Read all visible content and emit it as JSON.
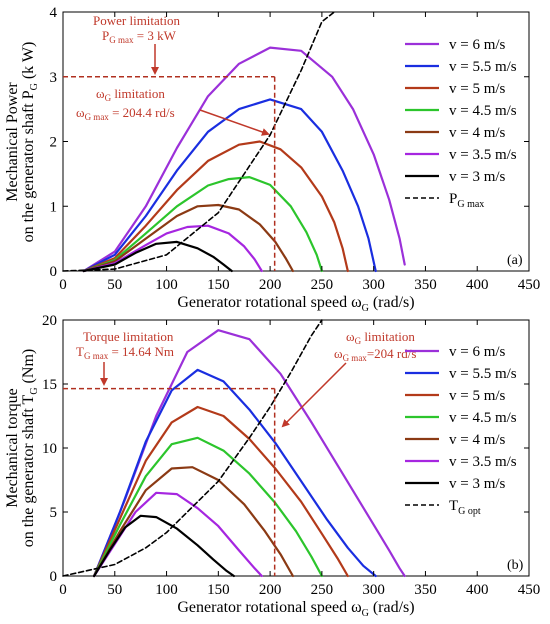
{
  "chart_data": [
    {
      "type": "line",
      "panel_label": "(a)",
      "xlabel": "Generator rotational speed ω",
      "xlabel_sub": "G",
      "xlabel_unit": " (rad/s)",
      "ylabel_line1": "Mechanical Power",
      "ylabel_line2": "on the generator shaft P",
      "ylabel_sub": "G",
      "ylabel_unit": " (k W)",
      "xlim": [
        0,
        450
      ],
      "ylim": [
        0,
        4
      ],
      "xticks": [
        0,
        50,
        100,
        150,
        200,
        250,
        300,
        350,
        400,
        450
      ],
      "yticks": [
        0,
        1,
        2,
        3,
        4
      ],
      "legend_position": "right",
      "series": [
        {
          "name": "v = 6 m/s",
          "color": "#9b30d9",
          "x": [
            20,
            50,
            80,
            110,
            140,
            170,
            200,
            230,
            260,
            280,
            300,
            315,
            325,
            330
          ],
          "y": [
            0.0,
            0.3,
            1.0,
            1.9,
            2.7,
            3.2,
            3.45,
            3.4,
            3.0,
            2.5,
            1.8,
            1.1,
            0.5,
            0.1
          ]
        },
        {
          "name": "v = 5.5 m/s",
          "color": "#1a2ee0",
          "x": [
            20,
            50,
            80,
            110,
            140,
            170,
            200,
            230,
            250,
            270,
            285,
            295,
            302
          ],
          "y": [
            0.0,
            0.25,
            0.85,
            1.55,
            2.15,
            2.5,
            2.65,
            2.5,
            2.15,
            1.55,
            1.0,
            0.5,
            0.0
          ]
        },
        {
          "name": "v = 5 m/s",
          "color": "#b33a1a",
          "x": [
            20,
            50,
            80,
            110,
            140,
            170,
            190,
            210,
            230,
            250,
            262,
            270,
            275
          ],
          "y": [
            0.0,
            0.2,
            0.7,
            1.25,
            1.7,
            1.95,
            2.0,
            1.88,
            1.6,
            1.15,
            0.75,
            0.35,
            0.0
          ]
        },
        {
          "name": "v = 4.5 m/s",
          "color": "#2cc52c",
          "x": [
            20,
            50,
            80,
            110,
            140,
            160,
            180,
            200,
            220,
            235,
            245,
            250
          ],
          "y": [
            0.0,
            0.17,
            0.58,
            1.0,
            1.32,
            1.42,
            1.45,
            1.33,
            1.0,
            0.6,
            0.25,
            0.0
          ]
        },
        {
          "name": "v = 4 m/s",
          "color": "#8b3a14",
          "x": [
            20,
            50,
            80,
            110,
            130,
            150,
            170,
            190,
            205,
            215,
            222
          ],
          "y": [
            0.0,
            0.15,
            0.5,
            0.85,
            1.0,
            1.02,
            0.95,
            0.72,
            0.45,
            0.2,
            0.0
          ]
        },
        {
          "name": "v = 3.5 m/s",
          "color": "#a626e0",
          "x": [
            20,
            50,
            80,
            100,
            120,
            140,
            160,
            175,
            185,
            192
          ],
          "y": [
            0.0,
            0.12,
            0.4,
            0.58,
            0.68,
            0.7,
            0.58,
            0.38,
            0.18,
            0.0
          ]
        },
        {
          "name": "v = 3 m/s",
          "color": "#000000",
          "x": [
            20,
            50,
            70,
            90,
            110,
            130,
            145,
            155,
            163
          ],
          "y": [
            0.0,
            0.1,
            0.28,
            0.42,
            0.45,
            0.35,
            0.22,
            0.1,
            0.0
          ]
        },
        {
          "name": "P",
          "name_sub": "G max",
          "color": "#000000",
          "dashed": true,
          "x": [
            0,
            50,
            100,
            150,
            200,
            230,
            250,
            262
          ],
          "y": [
            0.0,
            0.03,
            0.25,
            0.9,
            2.1,
            3.1,
            3.85,
            4.0
          ]
        }
      ],
      "annotations": [
        {
          "line1": "Power limitation",
          "line2": "P",
          "line2_sub": "G max",
          "line2_tail": " = 3 kW"
        },
        {
          "line1": "ω",
          "line1_sub": "G",
          "line1_tail": " limitation",
          "line2": "ω",
          "line2_sub": "G max",
          "line2_tail": " = 204.4 rd/s"
        }
      ],
      "limit_lines": {
        "y": 3.0,
        "x": 204.4
      }
    },
    {
      "type": "line",
      "panel_label": "(b)",
      "xlabel": "Generator rotational speed ω",
      "xlabel_sub": "G",
      "xlabel_unit": " (rad/s)",
      "ylabel_line1": "Mechanical torque",
      "ylabel_line2": "on the generator shaft T",
      "ylabel_sub": "G",
      "ylabel_unit": " (Nm)",
      "xlim": [
        0,
        450
      ],
      "ylim": [
        0,
        20
      ],
      "xticks": [
        0,
        50,
        100,
        150,
        200,
        250,
        300,
        350,
        400,
        450
      ],
      "yticks": [
        0,
        5,
        10,
        15,
        20
      ],
      "legend_position": "right",
      "series": [
        {
          "name": "v = 6 m/s",
          "color": "#9b30d9",
          "x": [
            30,
            60,
            90,
            120,
            150,
            180,
            210,
            240,
            270,
            300,
            315,
            325,
            330
          ],
          "y": [
            0.0,
            6.0,
            12.5,
            17.5,
            19.2,
            18.5,
            15.8,
            12.0,
            8.0,
            4.0,
            2.0,
            0.6,
            0.0
          ]
        },
        {
          "name": "v = 5.5 m/s",
          "color": "#1a2ee0",
          "x": [
            30,
            55,
            80,
            105,
            130,
            155,
            180,
            205,
            230,
            255,
            275,
            290,
            302
          ],
          "y": [
            0.0,
            5.0,
            10.5,
            14.5,
            16.1,
            15.2,
            13.0,
            10.4,
            7.4,
            4.4,
            2.2,
            0.8,
            0.0
          ]
        },
        {
          "name": "v = 5 m/s",
          "color": "#b33a1a",
          "x": [
            30,
            55,
            80,
            105,
            130,
            155,
            180,
            205,
            230,
            250,
            265,
            275
          ],
          "y": [
            0.0,
            4.5,
            9.0,
            12.0,
            13.2,
            12.5,
            10.7,
            8.4,
            5.8,
            3.3,
            1.4,
            0.0
          ]
        },
        {
          "name": "v = 4.5 m/s",
          "color": "#2cc52c",
          "x": [
            30,
            55,
            80,
            105,
            130,
            155,
            180,
            205,
            225,
            240,
            250
          ],
          "y": [
            0.0,
            4.0,
            7.8,
            10.3,
            10.8,
            9.8,
            8.0,
            5.7,
            3.5,
            1.5,
            0.0
          ]
        },
        {
          "name": "v = 4 m/s",
          "color": "#8b3a14",
          "x": [
            30,
            55,
            80,
            105,
            125,
            150,
            175,
            195,
            210,
            222
          ],
          "y": [
            0.0,
            3.5,
            6.7,
            8.4,
            8.5,
            7.5,
            5.6,
            3.5,
            1.7,
            0.0
          ]
        },
        {
          "name": "v = 3.5 m/s",
          "color": "#a626e0",
          "x": [
            30,
            50,
            70,
            90,
            110,
            130,
            150,
            170,
            185,
            192
          ],
          "y": [
            0.0,
            2.5,
            5.0,
            6.5,
            6.4,
            5.3,
            3.9,
            2.0,
            0.6,
            0.0
          ]
        },
        {
          "name": "v = 3 m/s",
          "color": "#000000",
          "x": [
            30,
            45,
            60,
            75,
            90,
            110,
            130,
            145,
            158,
            165
          ],
          "y": [
            0.0,
            2.0,
            3.8,
            4.7,
            4.6,
            3.7,
            2.4,
            1.3,
            0.4,
            0.0
          ]
        },
        {
          "name": "T",
          "name_sub": "G opt",
          "color": "#000000",
          "dashed": true,
          "x": [
            0,
            50,
            80,
            100,
            130,
            150,
            180,
            200,
            220,
            240,
            250
          ],
          "y": [
            0.0,
            0.9,
            2.2,
            3.4,
            5.8,
            7.4,
            10.8,
            13.2,
            15.9,
            18.8,
            20.0
          ]
        }
      ],
      "annotations": [
        {
          "line1": "Torque limitation",
          "line2": "T",
          "line2_sub": "G max",
          "line2_tail": " = 14.64 Nm"
        },
        {
          "line1": "ω",
          "line1_sub": "G",
          "line1_tail": " limitation",
          "line2": "ω",
          "line2_sub": "G max",
          "line2_tail": "=204 rd/s"
        }
      ],
      "limit_lines": {
        "y": 14.64,
        "x": 204.4
      }
    }
  ]
}
